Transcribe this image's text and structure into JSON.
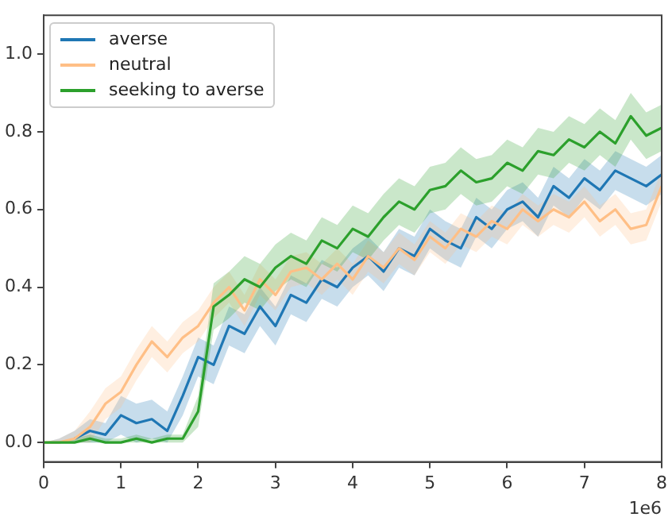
{
  "chart_data": {
    "type": "line",
    "annotations": [
      "1e6"
    ],
    "legend": "top left",
    "grid": false,
    "marker": "none",
    "line_style": "solid",
    "x": [
      0,
      0.2,
      0.4,
      0.6,
      0.8,
      1.0,
      1.2,
      1.4,
      1.6,
      1.8,
      2.0,
      2.2,
      2.4,
      2.6,
      2.8,
      3.0,
      3.2,
      3.4,
      3.6,
      3.8,
      4.0,
      4.2,
      4.4,
      4.6,
      4.8,
      5.0,
      5.2,
      5.4,
      5.6,
      5.8,
      6.0,
      6.2,
      6.4,
      6.6,
      6.8,
      7.0,
      7.2,
      7.4,
      7.6,
      7.8,
      8.0
    ],
    "xlim": [
      0,
      8
    ],
    "xticks": [
      0,
      1,
      2,
      3,
      4,
      5,
      6,
      7,
      8
    ],
    "ylim": [
      -0.05,
      1.1
    ],
    "yticks": [
      {
        "value": 0,
        "label": "0.0"
      },
      0.2,
      0.4,
      0.6,
      0.8,
      {
        "value": 1,
        "label": "1.0"
      }
    ],
    "series": [
      {
        "name": "averse",
        "color": "#1f77b4",
        "values": [
          null,
          null,
          0.01,
          0.03,
          0.02,
          0.07,
          0.05,
          0.06,
          0.03,
          0.12,
          0.22,
          0.2,
          0.3,
          0.28,
          0.35,
          0.3,
          0.38,
          0.36,
          0.42,
          0.4,
          0.45,
          0.48,
          0.44,
          0.5,
          0.48,
          0.55,
          0.52,
          0.5,
          0.58,
          0.55,
          0.6,
          0.62,
          0.58,
          0.66,
          0.63,
          0.68,
          0.65,
          0.7,
          0.68,
          0.66,
          0.69
        ],
        "lower": [
          0,
          0,
          0,
          0,
          0,
          0.02,
          0,
          0.01,
          0,
          0.07,
          0.17,
          0.15,
          0.25,
          0.23,
          0.3,
          0.25,
          0.33,
          0.31,
          0.37,
          0.35,
          0.4,
          0.43,
          0.39,
          0.45,
          0.43,
          0.5,
          0.47,
          0.45,
          0.53,
          0.5,
          0.55,
          0.57,
          0.53,
          0.61,
          0.58,
          0.63,
          0.6,
          0.65,
          0.63,
          0.61,
          0.64
        ],
        "upper": [
          0,
          0.01,
          0.03,
          0.06,
          0.05,
          0.12,
          0.1,
          0.11,
          0.08,
          0.17,
          0.27,
          0.25,
          0.35,
          0.33,
          0.4,
          0.35,
          0.43,
          0.41,
          0.47,
          0.45,
          0.5,
          0.53,
          0.49,
          0.55,
          0.53,
          0.6,
          0.57,
          0.55,
          0.63,
          0.6,
          0.65,
          0.67,
          0.63,
          0.71,
          0.68,
          0.73,
          0.7,
          0.75,
          0.73,
          0.71,
          0.74
        ]
      },
      {
        "name": "neutral",
        "color": "#ffbf86",
        "values": [
          0,
          0,
          0.01,
          0.04,
          0.1,
          0.13,
          0.2,
          0.26,
          0.22,
          0.27,
          0.3,
          0.36,
          0.4,
          0.34,
          0.42,
          0.38,
          0.44,
          0.45,
          0.42,
          0.46,
          0.42,
          0.48,
          0.45,
          0.5,
          0.47,
          0.53,
          0.5,
          0.55,
          0.53,
          0.57,
          0.55,
          0.6,
          0.57,
          0.6,
          0.58,
          0.62,
          0.57,
          0.6,
          0.55,
          0.56,
          0.66
        ],
        "lower": [
          0,
          0,
          0,
          0,
          0.06,
          0.09,
          0.16,
          0.22,
          0.18,
          0.23,
          0.26,
          0.32,
          0.36,
          0.3,
          0.38,
          0.34,
          0.4,
          0.41,
          0.38,
          0.42,
          0.38,
          0.44,
          0.41,
          0.46,
          0.43,
          0.49,
          0.46,
          0.51,
          0.49,
          0.53,
          0.51,
          0.56,
          0.53,
          0.56,
          0.54,
          0.58,
          0.53,
          0.56,
          0.51,
          0.52,
          0.62
        ],
        "upper": [
          0,
          0.01,
          0.03,
          0.08,
          0.14,
          0.17,
          0.24,
          0.3,
          0.26,
          0.31,
          0.34,
          0.4,
          0.44,
          0.38,
          0.46,
          0.42,
          0.48,
          0.49,
          0.46,
          0.5,
          0.46,
          0.52,
          0.49,
          0.54,
          0.51,
          0.57,
          0.54,
          0.59,
          0.57,
          0.61,
          0.59,
          0.64,
          0.61,
          0.64,
          0.62,
          0.66,
          0.61,
          0.64,
          0.59,
          0.6,
          0.7
        ]
      },
      {
        "name": "seeking to averse",
        "color": "#2ca02c",
        "values": [
          0,
          0,
          0,
          0.01,
          0,
          0,
          0.01,
          0,
          0.01,
          0.01,
          0.08,
          0.35,
          0.38,
          0.42,
          0.4,
          0.45,
          0.48,
          0.46,
          0.52,
          0.5,
          0.55,
          0.53,
          0.58,
          0.62,
          0.6,
          0.65,
          0.66,
          0.7,
          0.67,
          0.68,
          0.72,
          0.7,
          0.75,
          0.74,
          0.78,
          0.76,
          0.8,
          0.77,
          0.84,
          0.79,
          0.81
        ],
        "lower": [
          0,
          0,
          0,
          0,
          0,
          0,
          0,
          0,
          0,
          0,
          0.04,
          0.29,
          0.32,
          0.36,
          0.34,
          0.39,
          0.42,
          0.4,
          0.46,
          0.44,
          0.49,
          0.47,
          0.52,
          0.56,
          0.54,
          0.59,
          0.6,
          0.64,
          0.61,
          0.62,
          0.66,
          0.64,
          0.69,
          0.68,
          0.72,
          0.7,
          0.74,
          0.71,
          0.78,
          0.73,
          0.75
        ],
        "upper": [
          0,
          0,
          0.01,
          0.02,
          0.01,
          0.01,
          0.02,
          0.01,
          0.02,
          0.02,
          0.12,
          0.41,
          0.44,
          0.48,
          0.46,
          0.51,
          0.54,
          0.52,
          0.58,
          0.56,
          0.61,
          0.59,
          0.64,
          0.68,
          0.66,
          0.71,
          0.72,
          0.76,
          0.73,
          0.74,
          0.78,
          0.76,
          0.81,
          0.8,
          0.84,
          0.82,
          0.86,
          0.83,
          0.9,
          0.85,
          0.87
        ]
      }
    ]
  }
}
